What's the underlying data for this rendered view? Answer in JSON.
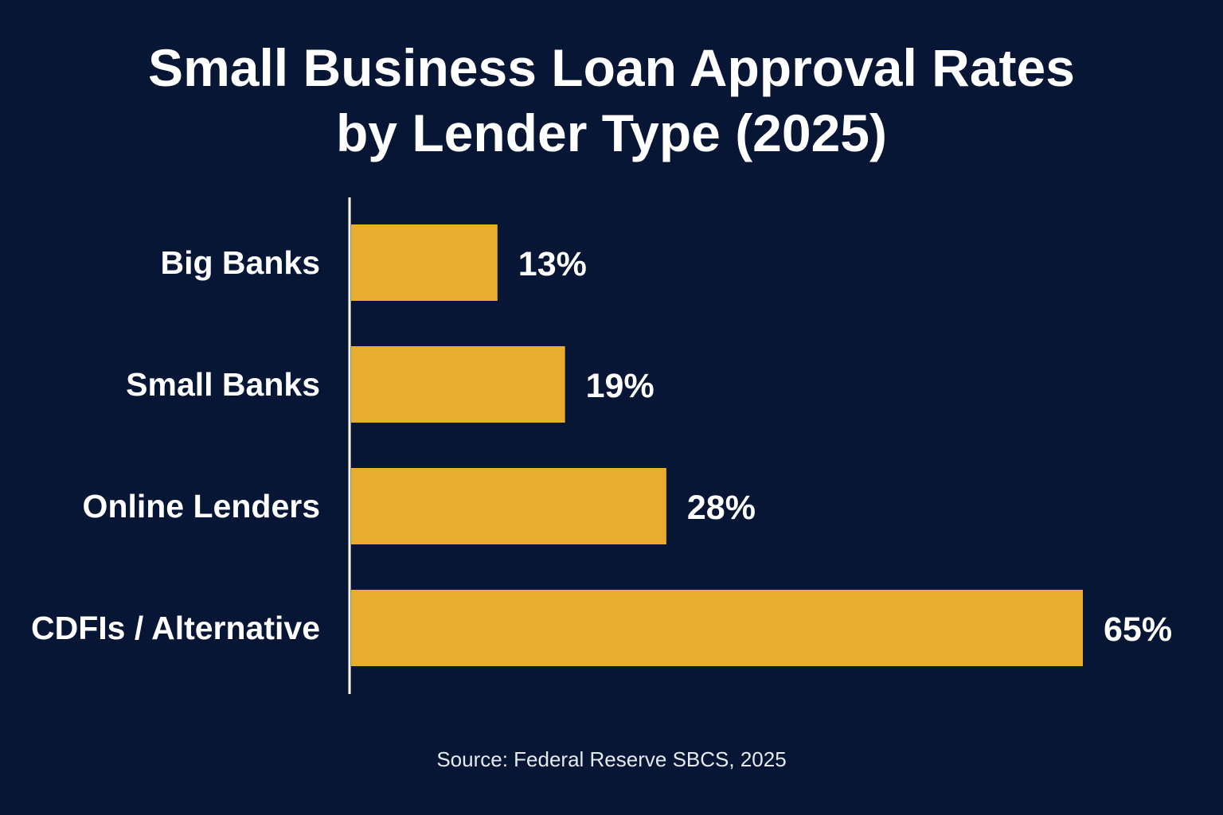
{
  "colors": {
    "background": "#061634",
    "bar": "#e8ad2c",
    "text": "#ffffff",
    "axis": "#ffffff"
  },
  "chart_data": {
    "type": "bar",
    "orientation": "horizontal",
    "title": "Small Business Loan Approval Rates by Lender Type (2025)",
    "title_lines": [
      "Small Business Loan Approval Rates",
      "by Lender Type (2025)"
    ],
    "categories": [
      "Big Banks",
      "Small Banks",
      "Online Lenders",
      "CDFIs / Alternative"
    ],
    "values": [
      13,
      19,
      28,
      65
    ],
    "value_labels": [
      "13%",
      "19%",
      "28%",
      "65%"
    ],
    "unit": "%",
    "xlim": [
      0,
      65
    ],
    "grid": false,
    "legend": "none",
    "source": "Source: Federal Reserve SBCS, 2025"
  }
}
